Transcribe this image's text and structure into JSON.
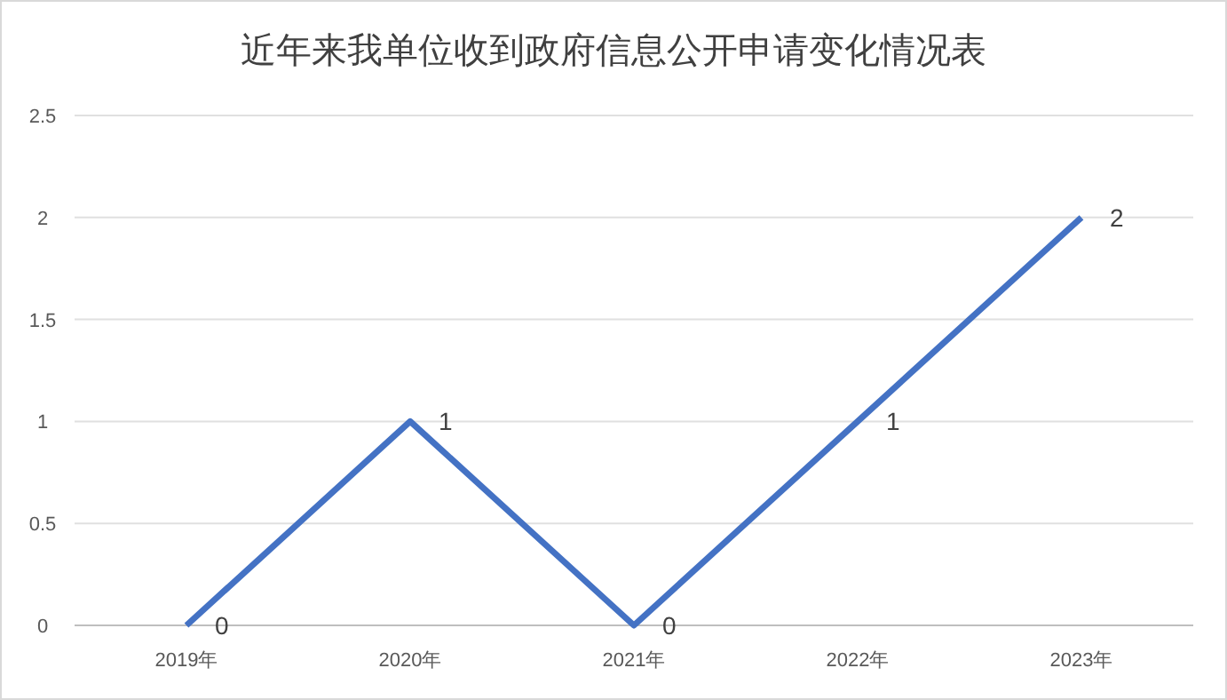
{
  "chart_data": {
    "type": "line",
    "title": "近年来我单位收到政府信息公开申请变化情况表",
    "categories": [
      "2019年",
      "2020年",
      "2021年",
      "2022年",
      "2023年"
    ],
    "series": [
      {
        "color": "#4472c4",
        "values": [
          0,
          1,
          0,
          1,
          2
        ]
      }
    ],
    "ylim": [
      0,
      2.5
    ],
    "yticks": [
      0,
      0.5,
      1,
      1.5,
      2,
      2.5
    ],
    "grid": "y",
    "data_labels": true,
    "marker": "none",
    "line_style": "solid"
  }
}
